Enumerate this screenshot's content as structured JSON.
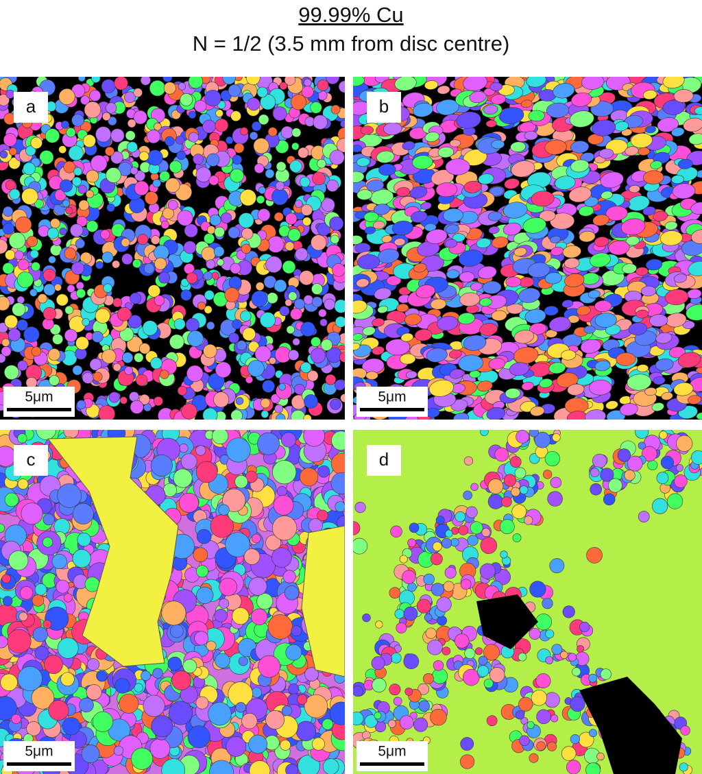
{
  "header": {
    "title": "99.99% Cu",
    "subtitle": "N = 1/2 (3.5 mm from disc centre)"
  },
  "panels": [
    {
      "label": "a",
      "scale_bar": "5μm"
    },
    {
      "label": "b",
      "scale_bar": "5μm"
    },
    {
      "label": "c",
      "scale_bar": "5μm"
    },
    {
      "label": "d",
      "scale_bar": "5μm"
    }
  ]
}
